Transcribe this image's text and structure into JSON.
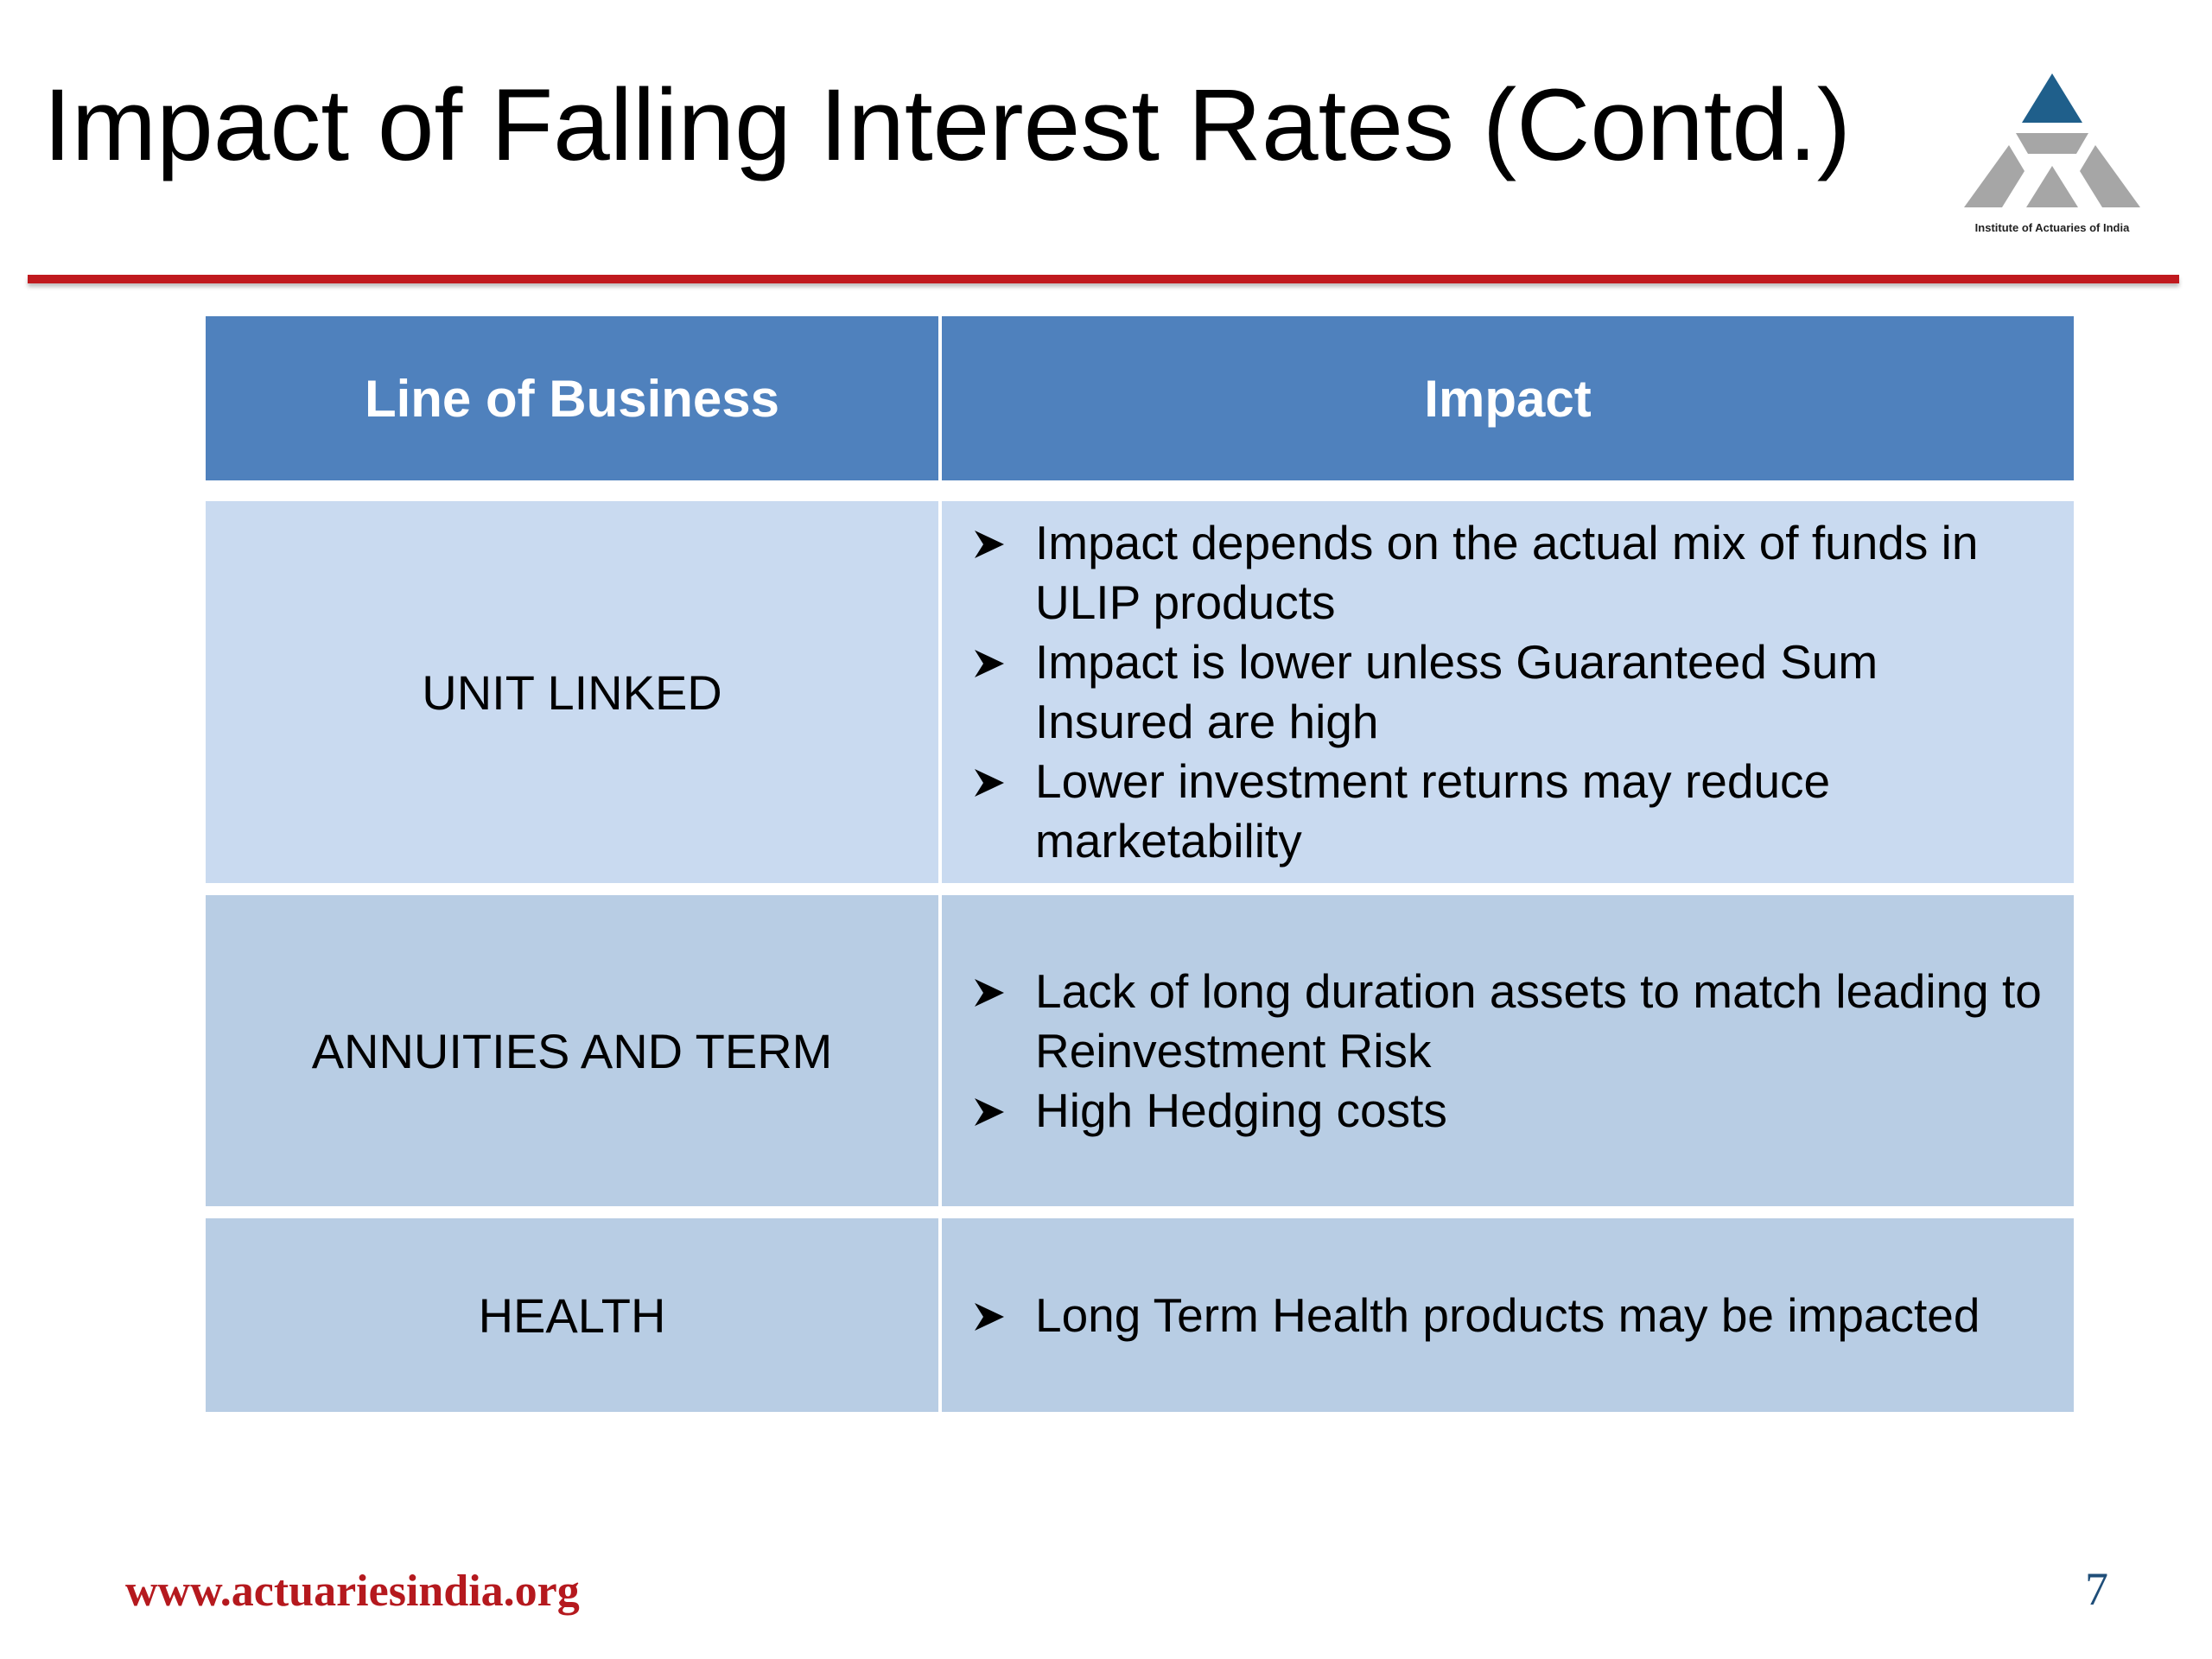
{
  "slide": {
    "title": "Impact of Falling Interest Rates (Contd.)",
    "logo": {
      "text": "Institute of Actuaries of India",
      "icon": "actuaries-logo-icon",
      "colors": {
        "apex": "#1f5f8b",
        "body": "#a6a6a6"
      }
    },
    "accent_color": "#c0191e"
  },
  "table": {
    "headers": [
      "Line of Business",
      "Impact"
    ],
    "header_color": "#4f81bd",
    "bullet_icon": "arrowhead-bullet-icon",
    "rows": [
      {
        "line_of_business": "UNIT LINKED",
        "impacts": [
          "Impact depends on the actual mix of  funds in ULIP products",
          "Impact is lower unless Guaranteed Sum Insured are high",
          "Lower investment returns may reduce marketability"
        ]
      },
      {
        "line_of_business": "ANNUITIES AND TERM",
        "impacts": [
          "Lack of long duration assets to match  leading to  Reinvestment Risk",
          "High Hedging costs"
        ]
      },
      {
        "line_of_business": "HEALTH",
        "impacts": [
          "Long Term Health products may be impacted"
        ]
      }
    ]
  },
  "footer": {
    "url": "www.actuariesindia.org",
    "page_number": "7"
  }
}
